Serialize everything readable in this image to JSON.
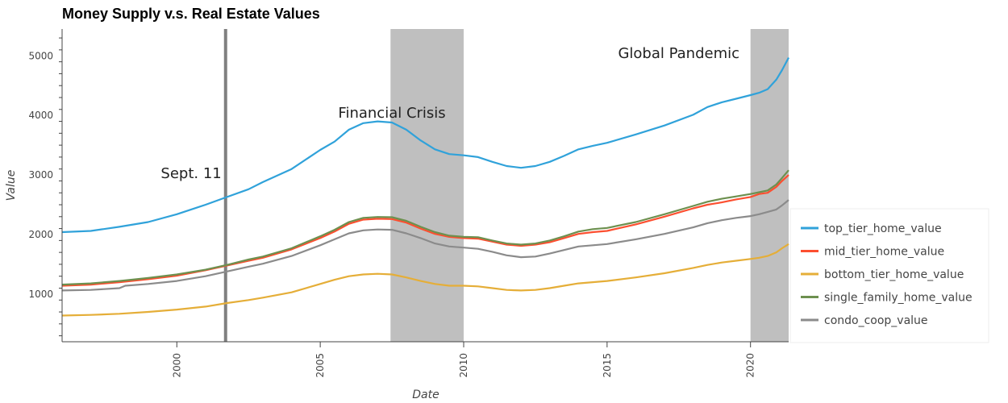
{
  "chart_data": {
    "type": "line",
    "title": "Money Supply v.s. Real Estate Values",
    "xlabel": "Date",
    "ylabel": "Value",
    "xlim": [
      1996.0,
      2021.33
    ],
    "ylim": [
      200,
      5450
    ],
    "x_ticks": [
      2000,
      2005,
      2010,
      2015,
      2020
    ],
    "y_ticks": [
      1000,
      2000,
      3000,
      4000,
      5000
    ],
    "grid": false,
    "legend_position": "right",
    "series": [
      {
        "name": "top_tier_home_value",
        "color": "#30a2da",
        "x": [
          1996.0,
          1997.0,
          1998.0,
          1999.0,
          2000.0,
          2001.0,
          2001.75,
          2002.5,
          2003.0,
          2004.0,
          2005.0,
          2005.5,
          2006.0,
          2006.5,
          2007.0,
          2007.5,
          2008.0,
          2008.5,
          2009.0,
          2009.5,
          2010.0,
          2010.5,
          2011.0,
          2011.5,
          2012.0,
          2012.5,
          2013.0,
          2013.5,
          2014.0,
          2014.5,
          2015.0,
          2016.0,
          2017.0,
          2018.0,
          2018.5,
          2019.0,
          2019.5,
          2020.0,
          2020.3,
          2020.6,
          2020.9,
          2021.1,
          2021.33
        ],
        "values": [
          2040,
          2060,
          2130,
          2210,
          2340,
          2500,
          2630,
          2760,
          2880,
          3100,
          3420,
          3560,
          3760,
          3870,
          3900,
          3880,
          3760,
          3580,
          3430,
          3350,
          3330,
          3300,
          3220,
          3150,
          3120,
          3150,
          3220,
          3320,
          3430,
          3490,
          3540,
          3680,
          3830,
          4010,
          4140,
          4220,
          4280,
          4340,
          4380,
          4440,
          4600,
          4760,
          4970
        ]
      },
      {
        "name": "mid_tier_home_value",
        "color": "#fc4f30",
        "x": [
          1996.0,
          1997.0,
          1998.0,
          1999.0,
          2000.0,
          2001.0,
          2001.75,
          2002.5,
          2003.0,
          2004.0,
          2005.0,
          2005.5,
          2006.0,
          2006.5,
          2007.0,
          2007.5,
          2008.0,
          2008.5,
          2009.0,
          2009.5,
          2010.0,
          2010.5,
          2011.0,
          2011.5,
          2012.0,
          2012.5,
          2013.0,
          2013.5,
          2014.0,
          2014.5,
          2015.0,
          2016.0,
          2017.0,
          2018.0,
          2018.5,
          2019.0,
          2019.5,
          2020.0,
          2020.3,
          2020.6,
          2020.9,
          2021.1,
          2021.33
        ],
        "values": [
          1140,
          1160,
          1200,
          1250,
          1310,
          1400,
          1480,
          1560,
          1610,
          1750,
          1940,
          2050,
          2180,
          2250,
          2265,
          2260,
          2200,
          2100,
          2010,
          1960,
          1940,
          1930,
          1880,
          1830,
          1810,
          1830,
          1870,
          1940,
          2010,
          2040,
          2060,
          2170,
          2300,
          2440,
          2500,
          2540,
          2590,
          2630,
          2680,
          2700,
          2800,
          2900,
          3000
        ]
      },
      {
        "name": "bottom_tier_home_value",
        "color": "#e5ae38",
        "x": [
          1996.0,
          1997.0,
          1998.0,
          1999.0,
          2000.0,
          2001.0,
          2001.75,
          2002.5,
          2003.0,
          2004.0,
          2005.0,
          2005.5,
          2006.0,
          2006.5,
          2007.0,
          2007.5,
          2008.0,
          2008.5,
          2009.0,
          2009.5,
          2010.0,
          2010.5,
          2011.0,
          2011.5,
          2012.0,
          2012.5,
          2013.0,
          2013.5,
          2014.0,
          2014.5,
          2015.0,
          2016.0,
          2017.0,
          2018.0,
          2018.5,
          2019.0,
          2019.5,
          2020.0,
          2020.3,
          2020.6,
          2020.9,
          2021.1,
          2021.33
        ],
        "values": [
          640,
          650,
          670,
          700,
          740,
          790,
          850,
          900,
          940,
          1030,
          1170,
          1240,
          1300,
          1330,
          1340,
          1330,
          1280,
          1220,
          1170,
          1140,
          1140,
          1130,
          1100,
          1070,
          1060,
          1070,
          1100,
          1140,
          1180,
          1200,
          1220,
          1280,
          1350,
          1440,
          1490,
          1530,
          1560,
          1590,
          1610,
          1640,
          1700,
          1770,
          1840
        ]
      },
      {
        "name": "single_family_home_value",
        "color": "#6d904f",
        "x": [
          1996.0,
          1997.0,
          1998.0,
          1999.0,
          2000.0,
          2001.0,
          2001.75,
          2002.5,
          2003.0,
          2004.0,
          2005.0,
          2005.5,
          2006.0,
          2006.5,
          2007.0,
          2007.5,
          2008.0,
          2008.5,
          2009.0,
          2009.5,
          2010.0,
          2010.5,
          2011.0,
          2011.5,
          2012.0,
          2012.5,
          2013.0,
          2013.5,
          2014.0,
          2014.5,
          2015.0,
          2016.0,
          2017.0,
          2018.0,
          2018.5,
          2019.0,
          2019.5,
          2020.0,
          2020.3,
          2020.6,
          2020.9,
          2021.1,
          2021.33
        ],
        "values": [
          1160,
          1180,
          1220,
          1270,
          1330,
          1410,
          1490,
          1580,
          1630,
          1770,
          1970,
          2080,
          2210,
          2280,
          2295,
          2290,
          2230,
          2130,
          2040,
          1980,
          1960,
          1955,
          1900,
          1850,
          1830,
          1850,
          1900,
          1970,
          2050,
          2090,
          2110,
          2210,
          2340,
          2480,
          2550,
          2600,
          2640,
          2680,
          2710,
          2740,
          2840,
          2950,
          3080
        ]
      },
      {
        "name": "condo_coop_value",
        "color": "#8b8b8b",
        "x": [
          1996.0,
          1997.0,
          1998.0,
          1998.2,
          1999.0,
          2000.0,
          2001.0,
          2001.75,
          2002.5,
          2003.0,
          2004.0,
          2005.0,
          2005.5,
          2006.0,
          2006.5,
          2007.0,
          2007.5,
          2008.0,
          2008.5,
          2009.0,
          2009.5,
          2010.0,
          2010.5,
          2011.0,
          2011.5,
          2012.0,
          2012.5,
          2013.0,
          2013.5,
          2014.0,
          2014.5,
          2015.0,
          2016.0,
          2017.0,
          2018.0,
          2018.5,
          2019.0,
          2019.5,
          2020.0,
          2020.3,
          2020.6,
          2020.9,
          2021.1,
          2021.33
        ],
        "values": [
          1060,
          1070,
          1100,
          1140,
          1170,
          1220,
          1300,
          1380,
          1460,
          1510,
          1640,
          1820,
          1920,
          2020,
          2070,
          2085,
          2080,
          2020,
          1940,
          1850,
          1800,
          1780,
          1760,
          1710,
          1650,
          1620,
          1630,
          1680,
          1740,
          1800,
          1820,
          1840,
          1920,
          2010,
          2120,
          2190,
          2240,
          2280,
          2310,
          2340,
          2380,
          2420,
          2490,
          2580
        ]
      }
    ],
    "vertical_lines": [
      {
        "x": 2001.7,
        "color": "#808080"
      }
    ],
    "shaded_regions": [
      {
        "x0": 2007.45,
        "x1": 2010.0,
        "color": "#bfbfbf"
      },
      {
        "x0": 2020.0,
        "x1": 2021.33,
        "color": "#bfbfbf"
      }
    ],
    "annotations": [
      {
        "text": "Sept. 11",
        "x": 2000.5,
        "y": 2950
      },
      {
        "text": "Financial Crisis",
        "x": 2007.5,
        "y": 3960
      },
      {
        "text": "Global Pandemic",
        "x": 2017.5,
        "y": 4960
      }
    ]
  }
}
